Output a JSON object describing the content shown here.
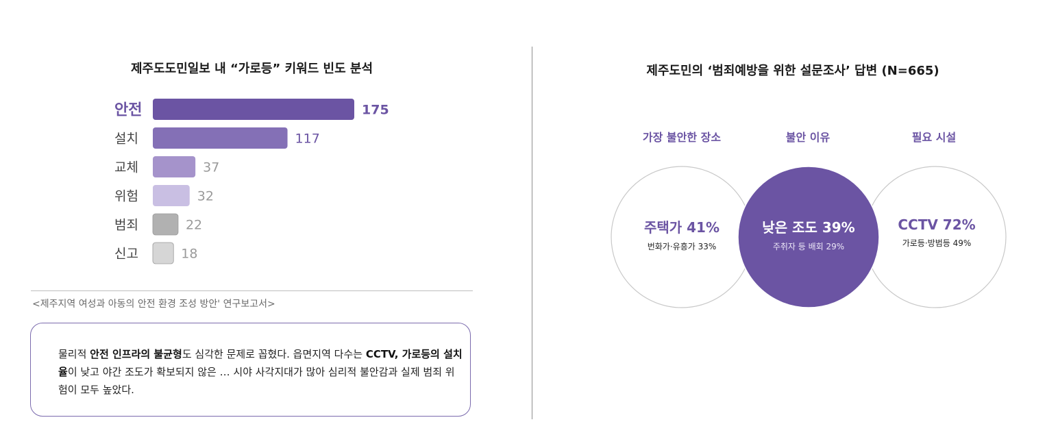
{
  "left": {
    "title": "제주도도민일보 내 “가로등” 키워드 빈도 분석",
    "source": "<제주지역 여성과 아동의 안전 환경 조성 방안' 연구보고서>",
    "summary": {
      "p1": "물리적 ",
      "b1": "안전 인프라의 불균형",
      "p2": "도 심각한 문제로 꼽혔다. 읍면지역 다수는 ",
      "b2": "CCTV, 가로등의 설치율",
      "p3": "이 낮고 야간 조도가 확보되지 않은 … 시야 사각지대가 많아 심리적 불안감과 실제 범죄 위험이 모두 높았다."
    }
  },
  "chart_data": {
    "type": "bar",
    "orientation": "horizontal",
    "title": "제주도도민일보 내 “가로등” 키워드 빈도 분석",
    "categories": [
      "안전",
      "설치",
      "교체",
      "위험",
      "범죄",
      "신고"
    ],
    "values": [
      175,
      117,
      37,
      32,
      22,
      18
    ],
    "bar_colors": [
      "#6b54a3",
      "#8470b6",
      "#a593cb",
      "#c9bfe3",
      "#b1b1b1",
      "#d6d6d6"
    ],
    "label_colors": [
      "#6b54a3",
      "#6b54a3",
      "#9a9a9a",
      "#9a9a9a",
      "#9a9a9a",
      "#9a9a9a"
    ],
    "category_colors": [
      "#6b54a3",
      "#444444",
      "#444444",
      "#444444",
      "#444444",
      "#444444"
    ]
  },
  "right": {
    "title": "제주도민의 ‘범죄예방을 위한 설문조사’ 답변 (N=665)",
    "columns": [
      {
        "label": "가장 불안한 장소",
        "main": "주택가 41%",
        "sub": "번화가·유흥가 33%"
      },
      {
        "label": "불안 이유",
        "main": "낮은 조도 39%",
        "sub": "주취자 등 배회 29%"
      },
      {
        "label": "필요 시설",
        "main": "CCTV 72%",
        "sub": "가로등·방범등 49%"
      }
    ]
  },
  "colors": {
    "accent": "#6b54a3",
    "circle_border": "#c8c8c8",
    "box_border": "#7a6aad"
  }
}
